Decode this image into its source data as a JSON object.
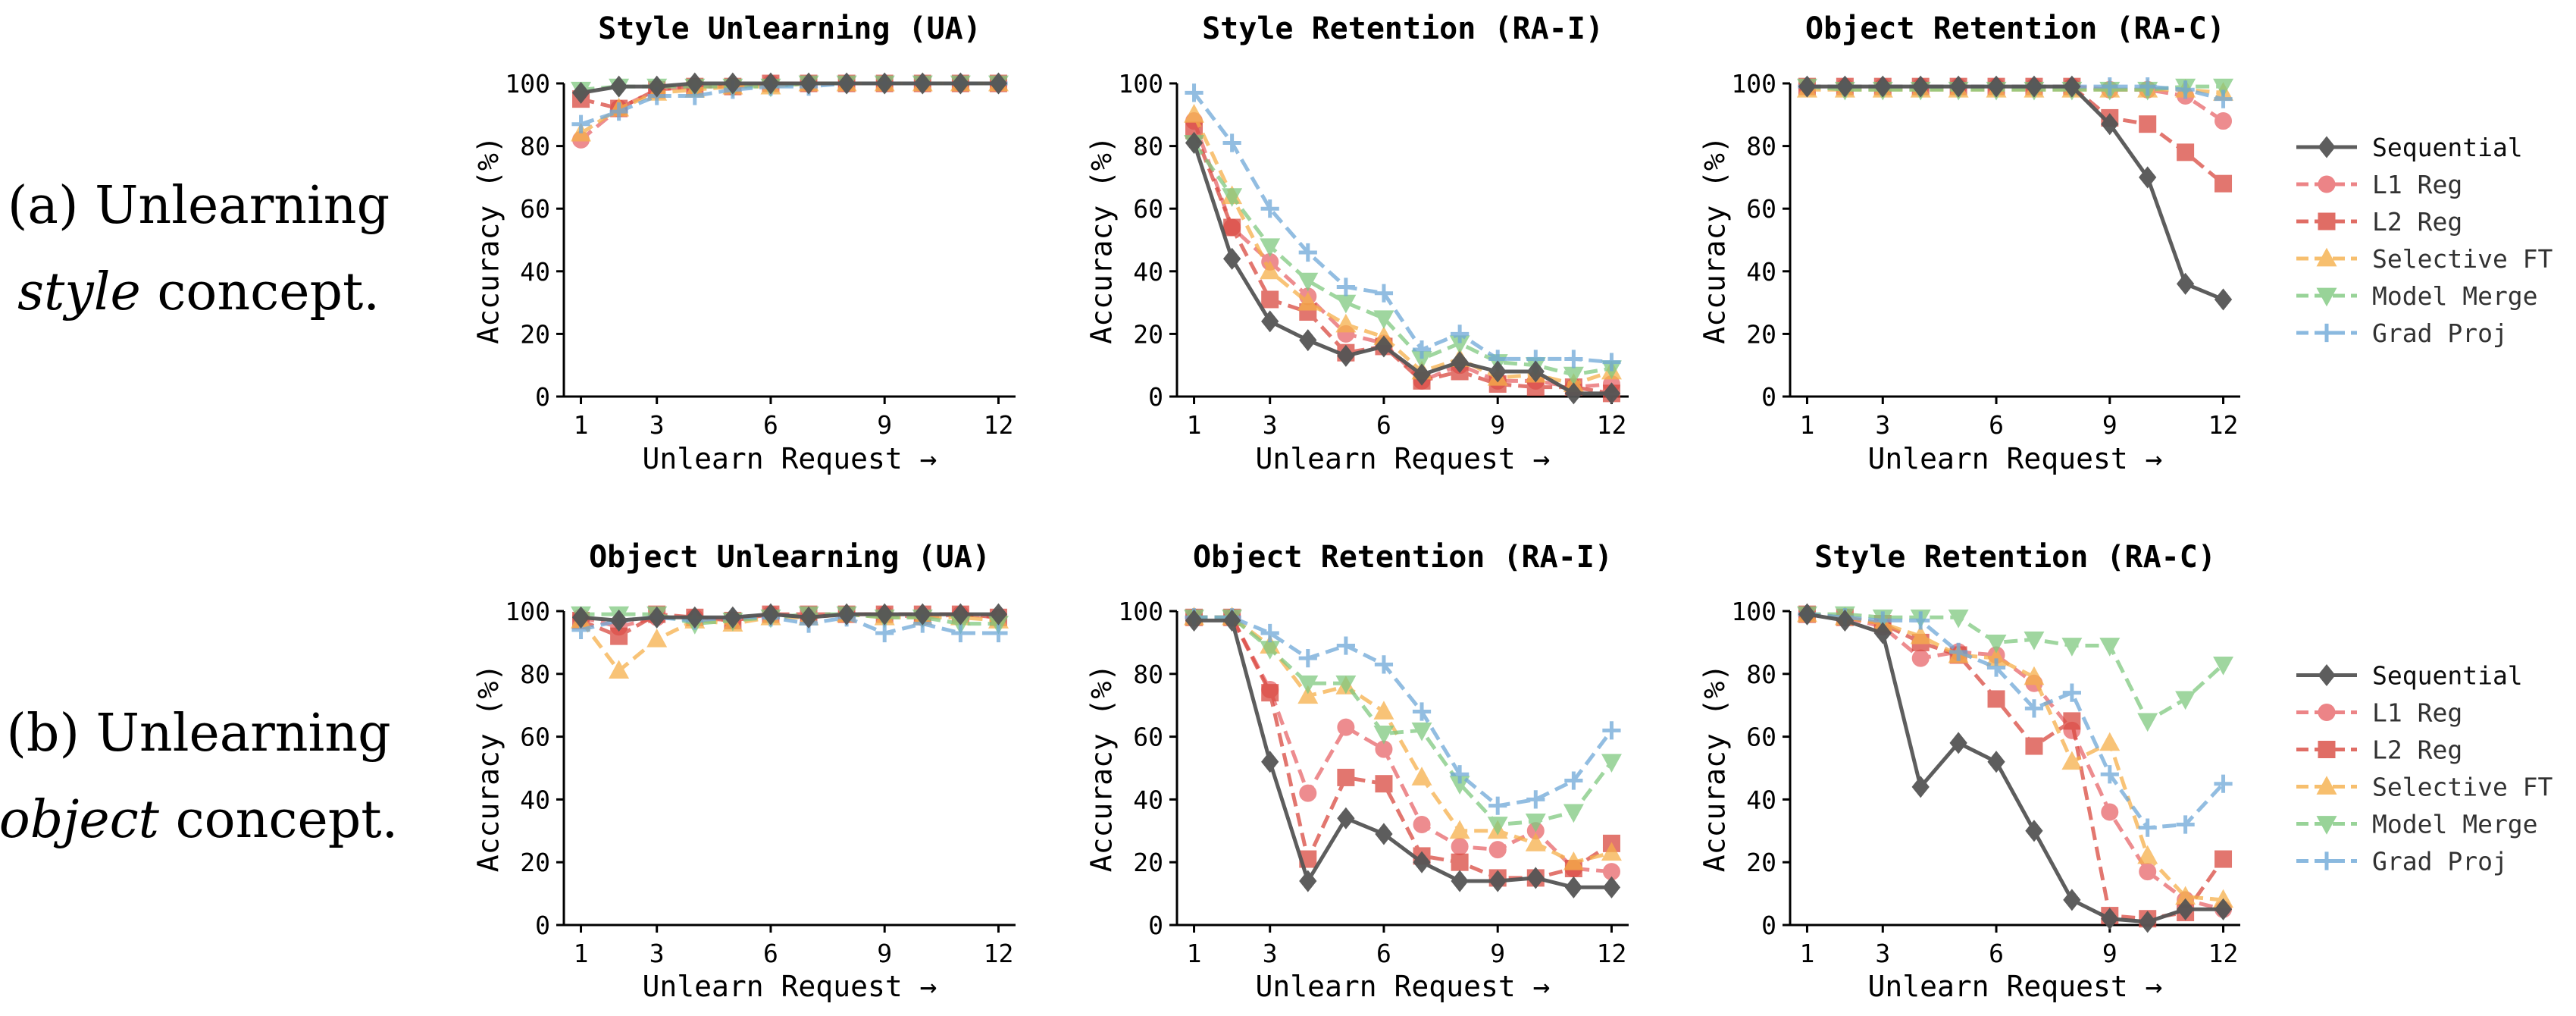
{
  "row_labels": [
    {
      "line1": "(a) Unlearning",
      "line2_em": "style",
      "line2_rest": " concept."
    },
    {
      "line1": "(b) Unlearning",
      "line2_em": "object",
      "line2_rest": " concept."
    }
  ],
  "series_styles": [
    {
      "name": "Sequential",
      "color": "#555555",
      "marker": "diamond",
      "dashed": false
    },
    {
      "name": "L1 Reg",
      "color": "#e8666a",
      "marker": "circle",
      "dashed": true
    },
    {
      "name": "L2 Reg",
      "color": "#d9493f",
      "marker": "square",
      "dashed": true
    },
    {
      "name": "Selective FT",
      "color": "#f6b04a",
      "marker": "triangle-up",
      "dashed": true
    },
    {
      "name": "Model Merge",
      "color": "#7fc97f",
      "marker": "triangle-down",
      "dashed": true
    },
    {
      "name": "Grad Proj",
      "color": "#6ea8d8",
      "marker": "plus",
      "dashed": true
    }
  ],
  "chart_data": [
    {
      "type": "line",
      "title": "Style Unlearning (UA)",
      "xlabel": "Unlearn Request →",
      "ylabel": "Accuracy (%)",
      "x": [
        1,
        2,
        3,
        4,
        5,
        6,
        7,
        8,
        9,
        10,
        11,
        12
      ],
      "xticks": [
        1,
        3,
        6,
        9,
        12
      ],
      "ylim": [
        0,
        100
      ],
      "yticks": [
        0,
        20,
        40,
        60,
        80,
        100
      ],
      "legend": "none",
      "series": [
        {
          "name": "Sequential",
          "values": [
            97,
            99,
            99,
            100,
            100,
            100,
            100,
            100,
            100,
            100,
            100,
            100
          ]
        },
        {
          "name": "L1 Reg",
          "values": [
            82,
            92,
            98,
            99,
            99,
            100,
            100,
            100,
            100,
            100,
            100,
            100
          ]
        },
        {
          "name": "L2 Reg",
          "values": [
            95,
            92,
            98,
            99,
            99,
            100,
            100,
            100,
            100,
            100,
            100,
            100
          ]
        },
        {
          "name": "Selective FT",
          "values": [
            84,
            92,
            97,
            98,
            99,
            99,
            100,
            100,
            100,
            100,
            100,
            100
          ]
        },
        {
          "name": "Model Merge",
          "values": [
            98,
            99,
            99,
            99,
            99,
            99,
            100,
            100,
            100,
            100,
            100,
            100
          ]
        },
        {
          "name": "Grad Proj",
          "values": [
            87,
            91,
            96,
            96,
            98,
            99,
            99,
            100,
            100,
            100,
            100,
            100
          ]
        }
      ]
    },
    {
      "type": "line",
      "title": "Style Retention (RA-I)",
      "xlabel": "Unlearn Request →",
      "ylabel": "Accuracy (%)",
      "x": [
        1,
        2,
        3,
        4,
        5,
        6,
        7,
        8,
        9,
        10,
        11,
        12
      ],
      "xticks": [
        1,
        3,
        6,
        9,
        12
      ],
      "ylim": [
        0,
        100
      ],
      "yticks": [
        0,
        20,
        40,
        60,
        80,
        100
      ],
      "legend": "none",
      "series": [
        {
          "name": "Sequential",
          "values": [
            81,
            44,
            24,
            18,
            13,
            16,
            7,
            11,
            8,
            8,
            1,
            1
          ]
        },
        {
          "name": "L1 Reg",
          "values": [
            88,
            54,
            43,
            32,
            20,
            17,
            5,
            10,
            5,
            5,
            3,
            4
          ]
        },
        {
          "name": "L2 Reg",
          "values": [
            85,
            54,
            31,
            27,
            14,
            16,
            5,
            8,
            4,
            3,
            3,
            1
          ]
        },
        {
          "name": "Selective FT",
          "values": [
            90,
            64,
            40,
            30,
            23,
            19,
            8,
            12,
            6,
            7,
            4,
            8
          ]
        },
        {
          "name": "Model Merge",
          "values": [
            81,
            64,
            48,
            37,
            30,
            25,
            12,
            17,
            11,
            10,
            7,
            9
          ]
        },
        {
          "name": "Grad Proj",
          "values": [
            97,
            81,
            60,
            46,
            35,
            33,
            15,
            20,
            12,
            12,
            12,
            11
          ]
        }
      ]
    },
    {
      "type": "line",
      "title": "Object Retention (RA-C)",
      "xlabel": "Unlearn Request →",
      "ylabel": "Accuracy (%)",
      "x": [
        1,
        2,
        3,
        4,
        5,
        6,
        7,
        8,
        9,
        10,
        11,
        12
      ],
      "xticks": [
        1,
        3,
        6,
        9,
        12
      ],
      "ylim": [
        0,
        100
      ],
      "yticks": [
        0,
        20,
        40,
        60,
        80,
        100
      ],
      "legend": "right",
      "series": [
        {
          "name": "Sequential",
          "values": [
            99,
            99,
            99,
            99,
            99,
            99,
            99,
            99,
            87,
            70,
            36,
            31
          ]
        },
        {
          "name": "L1 Reg",
          "values": [
            99,
            99,
            99,
            99,
            99,
            99,
            99,
            99,
            98,
            98,
            96,
            88
          ]
        },
        {
          "name": "L2 Reg",
          "values": [
            99,
            99,
            99,
            99,
            99,
            99,
            99,
            99,
            89,
            87,
            78,
            68
          ]
        },
        {
          "name": "Selective FT",
          "values": [
            98,
            98,
            98,
            98,
            98,
            98,
            98,
            98,
            98,
            98,
            98,
            97
          ]
        },
        {
          "name": "Model Merge",
          "values": [
            99,
            98,
            98,
            98,
            98,
            98,
            98,
            98,
            98,
            98,
            99,
            99
          ]
        },
        {
          "name": "Grad Proj",
          "values": [
            99,
            99,
            99,
            99,
            99,
            99,
            99,
            99,
            99,
            99,
            98,
            95
          ]
        }
      ]
    },
    {
      "type": "line",
      "title": "Object Unlearning (UA)",
      "xlabel": "Unlearn Request →",
      "ylabel": "Accuracy (%)",
      "x": [
        1,
        2,
        3,
        4,
        5,
        6,
        7,
        8,
        9,
        10,
        11,
        12
      ],
      "xticks": [
        1,
        3,
        6,
        9,
        12
      ],
      "ylim": [
        0,
        100
      ],
      "yticks": [
        0,
        20,
        40,
        60,
        80,
        100
      ],
      "legend": "none",
      "series": [
        {
          "name": "Sequential",
          "values": [
            98,
            97,
            98,
            98,
            98,
            99,
            98,
            99,
            99,
            99,
            99,
            99
          ]
        },
        {
          "name": "L1 Reg",
          "values": [
            98,
            95,
            98,
            98,
            97,
            99,
            98,
            99,
            99,
            98,
            99,
            98
          ]
        },
        {
          "name": "L2 Reg",
          "values": [
            97,
            92,
            99,
            98,
            97,
            99,
            99,
            99,
            99,
            99,
            99,
            98
          ]
        },
        {
          "name": "Selective FT",
          "values": [
            97,
            81,
            91,
            97,
            96,
            98,
            98,
            99,
            98,
            98,
            98,
            97
          ]
        },
        {
          "name": "Model Merge",
          "values": [
            99,
            99,
            99,
            96,
            97,
            98,
            99,
            99,
            98,
            98,
            96,
            96
          ]
        },
        {
          "name": "Grad Proj",
          "values": [
            94,
            97,
            98,
            97,
            98,
            98,
            96,
            98,
            93,
            96,
            93,
            93
          ]
        }
      ]
    },
    {
      "type": "line",
      "title": "Object Retention (RA-I)",
      "xlabel": "Unlearn Request →",
      "ylabel": "Accuracy (%)",
      "x": [
        1,
        2,
        3,
        4,
        5,
        6,
        7,
        8,
        9,
        10,
        11,
        12
      ],
      "xticks": [
        1,
        3,
        6,
        9,
        12
      ],
      "ylim": [
        0,
        100
      ],
      "yticks": [
        0,
        20,
        40,
        60,
        80,
        100
      ],
      "legend": "none",
      "series": [
        {
          "name": "Sequential",
          "values": [
            97,
            97,
            52,
            14,
            34,
            29,
            20,
            14,
            14,
            15,
            12,
            12
          ]
        },
        {
          "name": "L1 Reg",
          "values": [
            98,
            98,
            75,
            42,
            63,
            56,
            32,
            25,
            24,
            30,
            18,
            17
          ]
        },
        {
          "name": "L2 Reg",
          "values": [
            98,
            98,
            74,
            21,
            47,
            45,
            22,
            20,
            15,
            15,
            18,
            26
          ]
        },
        {
          "name": "Selective FT",
          "values": [
            98,
            98,
            89,
            73,
            76,
            68,
            47,
            30,
            30,
            26,
            20,
            23
          ]
        },
        {
          "name": "Model Merge",
          "values": [
            98,
            98,
            88,
            77,
            77,
            61,
            62,
            45,
            32,
            33,
            36,
            52
          ]
        },
        {
          "name": "Grad Proj",
          "values": [
            98,
            98,
            93,
            85,
            89,
            83,
            68,
            48,
            38,
            40,
            46,
            62
          ]
        }
      ]
    },
    {
      "type": "line",
      "title": "Style Retention (RA-C)",
      "xlabel": "Unlearn Request →",
      "ylabel": "Accuracy (%)",
      "x": [
        1,
        2,
        3,
        4,
        5,
        6,
        7,
        8,
        9,
        10,
        11,
        12
      ],
      "xticks": [
        1,
        3,
        6,
        9,
        12
      ],
      "ylim": [
        0,
        100
      ],
      "yticks": [
        0,
        20,
        40,
        60,
        80,
        100
      ],
      "legend": "right",
      "series": [
        {
          "name": "Sequential",
          "values": [
            99,
            97,
            93,
            44,
            58,
            52,
            30,
            8,
            2,
            1,
            5,
            5
          ]
        },
        {
          "name": "L1 Reg",
          "values": [
            99,
            98,
            95,
            85,
            87,
            86,
            77,
            62,
            36,
            17,
            8,
            5
          ]
        },
        {
          "name": "L2 Reg",
          "values": [
            99,
            98,
            96,
            90,
            86,
            72,
            57,
            65,
            3,
            2,
            4,
            21
          ]
        },
        {
          "name": "Selective FT",
          "values": [
            99,
            98,
            96,
            92,
            86,
            85,
            79,
            52,
            58,
            22,
            9,
            8
          ]
        },
        {
          "name": "Model Merge",
          "values": [
            99,
            99,
            98,
            98,
            98,
            90,
            91,
            89,
            89,
            65,
            72,
            83
          ]
        },
        {
          "name": "Grad Proj",
          "values": [
            99,
            98,
            97,
            97,
            87,
            82,
            69,
            74,
            48,
            31,
            32,
            45
          ]
        }
      ]
    }
  ]
}
